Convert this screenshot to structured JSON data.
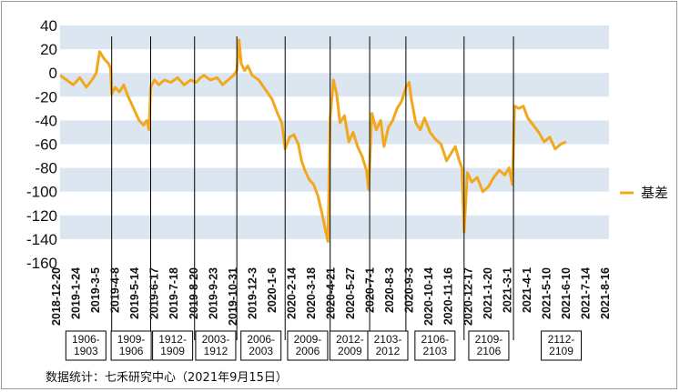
{
  "chart_data": {
    "type": "line",
    "title": "",
    "xlabel": "",
    "ylabel": "",
    "ylim": [
      -160,
      40
    ],
    "yticks": [
      40,
      20,
      0,
      -20,
      -40,
      -60,
      -80,
      -100,
      -120,
      -140,
      -160
    ],
    "banded_background": true,
    "band_color": "#dce6f1",
    "legend_position": "right",
    "series": [
      {
        "name": "基差",
        "color": "#f2a81d",
        "points": [
          [
            0.0,
            -2
          ],
          [
            0.012,
            -6
          ],
          [
            0.024,
            -10
          ],
          [
            0.036,
            -4
          ],
          [
            0.048,
            -12
          ],
          [
            0.058,
            -6
          ],
          [
            0.066,
            0
          ],
          [
            0.072,
            18
          ],
          [
            0.08,
            12
          ],
          [
            0.088,
            8
          ],
          [
            0.092,
            4
          ],
          [
            0.094,
            -18
          ],
          [
            0.1,
            -12
          ],
          [
            0.108,
            -16
          ],
          [
            0.116,
            -10
          ],
          [
            0.124,
            -20
          ],
          [
            0.134,
            -30
          ],
          [
            0.144,
            -40
          ],
          [
            0.152,
            -44
          ],
          [
            0.158,
            -40
          ],
          [
            0.162,
            -48
          ],
          [
            0.165,
            -12
          ],
          [
            0.172,
            -6
          ],
          [
            0.18,
            -10
          ],
          [
            0.19,
            -6
          ],
          [
            0.202,
            -8
          ],
          [
            0.214,
            -4
          ],
          [
            0.226,
            -10
          ],
          [
            0.238,
            -6
          ],
          [
            0.248,
            -8
          ],
          [
            0.256,
            -4
          ],
          [
            0.262,
            -2
          ],
          [
            0.274,
            -6
          ],
          [
            0.286,
            -4
          ],
          [
            0.296,
            -10
          ],
          [
            0.306,
            -6
          ],
          [
            0.316,
            -2
          ],
          [
            0.322,
            2
          ],
          [
            0.326,
            28
          ],
          [
            0.33,
            8
          ],
          [
            0.336,
            2
          ],
          [
            0.342,
            6
          ],
          [
            0.35,
            -2
          ],
          [
            0.362,
            -6
          ],
          [
            0.374,
            -14
          ],
          [
            0.386,
            -22
          ],
          [
            0.396,
            -34
          ],
          [
            0.404,
            -42
          ],
          [
            0.41,
            -64
          ],
          [
            0.418,
            -54
          ],
          [
            0.426,
            -52
          ],
          [
            0.434,
            -60
          ],
          [
            0.44,
            -74
          ],
          [
            0.446,
            -82
          ],
          [
            0.454,
            -90
          ],
          [
            0.462,
            -94
          ],
          [
            0.47,
            -104
          ],
          [
            0.478,
            -120
          ],
          [
            0.484,
            -134
          ],
          [
            0.488,
            -142
          ],
          [
            0.492,
            -38
          ],
          [
            0.498,
            -6
          ],
          [
            0.504,
            -18
          ],
          [
            0.51,
            -42
          ],
          [
            0.518,
            -36
          ],
          [
            0.526,
            -58
          ],
          [
            0.534,
            -50
          ],
          [
            0.542,
            -62
          ],
          [
            0.55,
            -70
          ],
          [
            0.558,
            -82
          ],
          [
            0.562,
            -98
          ],
          [
            0.568,
            -34
          ],
          [
            0.576,
            -48
          ],
          [
            0.584,
            -40
          ],
          [
            0.59,
            -62
          ],
          [
            0.598,
            -46
          ],
          [
            0.606,
            -40
          ],
          [
            0.614,
            -30
          ],
          [
            0.622,
            -24
          ],
          [
            0.63,
            -12
          ],
          [
            0.636,
            -8
          ],
          [
            0.64,
            -22
          ],
          [
            0.648,
            -42
          ],
          [
            0.656,
            -48
          ],
          [
            0.664,
            -38
          ],
          [
            0.674,
            -50
          ],
          [
            0.684,
            -56
          ],
          [
            0.694,
            -60
          ],
          [
            0.704,
            -74
          ],
          [
            0.712,
            -68
          ],
          [
            0.72,
            -62
          ],
          [
            0.726,
            -72
          ],
          [
            0.732,
            -80
          ],
          [
            0.736,
            -134
          ],
          [
            0.742,
            -84
          ],
          [
            0.75,
            -92
          ],
          [
            0.76,
            -88
          ],
          [
            0.77,
            -100
          ],
          [
            0.78,
            -96
          ],
          [
            0.79,
            -88
          ],
          [
            0.8,
            -82
          ],
          [
            0.81,
            -86
          ],
          [
            0.818,
            -80
          ],
          [
            0.824,
            -94
          ],
          [
            0.828,
            -28
          ],
          [
            0.836,
            -30
          ],
          [
            0.844,
            -28
          ],
          [
            0.852,
            -38
          ],
          [
            0.862,
            -44
          ],
          [
            0.872,
            -50
          ],
          [
            0.882,
            -58
          ],
          [
            0.892,
            -54
          ],
          [
            0.902,
            -64
          ],
          [
            0.912,
            -60
          ],
          [
            0.922,
            -58
          ]
        ]
      }
    ],
    "x_tick_labels": [
      "2018-12-20",
      "2019-1-24",
      "2019-3-5",
      "2019-4-8",
      "2019-5-14",
      "2019-6-17",
      "2019-7-18",
      "2019-8-20",
      "2019-9-23",
      "2019-10-31",
      "2019-12-3",
      "2020-1-6",
      "2020-2-14",
      "2020-3-18",
      "2020-4-21",
      "2020-5-27",
      "2020-7-1",
      "2020-8-3",
      "2020-9-3",
      "2020-10-14",
      "2020-11-16",
      "2020-12-17",
      "2021-1-20",
      "2021-3-1",
      "2021-4-1",
      "2021-5-10",
      "2021-6-10",
      "2021-7-14",
      "2021-8-16"
    ],
    "contract_switch_positions": [
      0.094,
      0.165,
      0.245,
      0.322,
      0.41,
      0.492,
      0.564,
      0.63,
      0.736,
      0.826
    ],
    "contract_boxes": [
      {
        "label": "1906-1903"
      },
      {
        "label": "1909-1906"
      },
      {
        "label": "1912-1909"
      },
      {
        "label": "2003-1912"
      },
      {
        "label": "2006-2003"
      },
      {
        "label": "2009-2006"
      },
      {
        "label": "2012-2009"
      },
      {
        "label": "2103-2012"
      },
      {
        "label": "2106-2103"
      },
      {
        "label": "2109-2106"
      },
      {
        "label": "2112-2109"
      }
    ]
  },
  "source_note": "数据统计：七禾研究中心（2021年9月15日）"
}
